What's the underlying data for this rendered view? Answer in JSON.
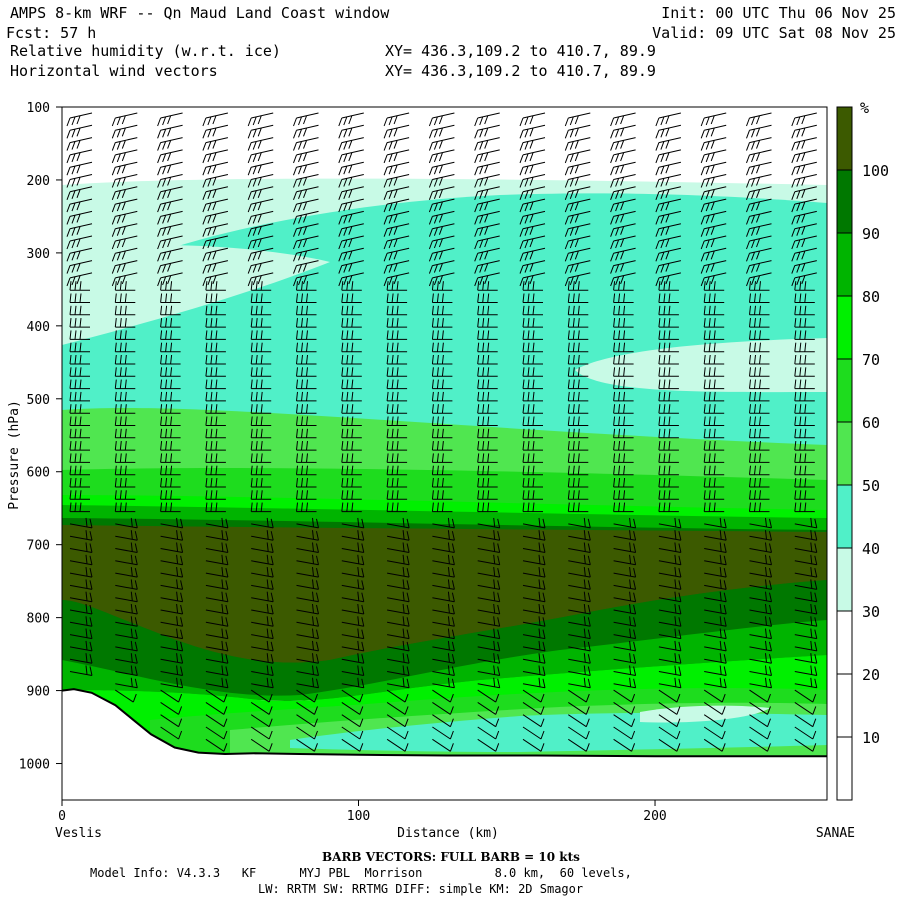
{
  "header": {
    "title_left": "AMPS 8-km WRF -- Qn Maud Land Coast window",
    "fcst": "Fcst:    57 h",
    "field1": "Relative humidity (w.r.t. ice)",
    "field2": "Horizontal wind vectors",
    "init": "Init: 00 UTC Thu 06 Nov 25",
    "valid": "Valid: 09 UTC Sat 08 Nov 25",
    "xy1": "XY= 436.3,109.2 to 410.7, 89.9",
    "xy2": "XY= 436.3,109.2 to 410.7, 89.9"
  },
  "colors": {
    "band_30_40": "#c8fae6",
    "band_40_50": "#50f0c8",
    "band_50_60": "#50e650",
    "band_60_70": "#1edc1e",
    "band_70_80": "#00f000",
    "band_80_90": "#00b400",
    "band_90_100": "#007800",
    "band_100": "#3c5a00",
    "terrain_line": "#000000"
  },
  "chart_data": {
    "type": "heatmap",
    "xlabel": "Distance (km)",
    "ylabel": "Pressure (hPa)",
    "xlim": [
      0,
      258
    ],
    "ylim": [
      1050,
      100
    ],
    "x_ticks": [
      "0",
      "100",
      "200"
    ],
    "x_tick_values": [
      0,
      100,
      200
    ],
    "y_ticks": [
      "100",
      "200",
      "300",
      "400",
      "500",
      "600",
      "700",
      "800",
      "900",
      "1000"
    ],
    "y_tick_values": [
      100,
      200,
      300,
      400,
      500,
      600,
      700,
      800,
      900,
      1000
    ],
    "left_end_label": "Veslis",
    "right_end_label": "SANAE",
    "colorbar": {
      "unit": "%",
      "levels": [
        "10",
        "20",
        "30",
        "40",
        "50",
        "60",
        "70",
        "80",
        "90",
        "100"
      ],
      "level_values": [
        10,
        20,
        30,
        40,
        50,
        60,
        70,
        80,
        90,
        100
      ]
    },
    "terrain_surface": {
      "x": [
        0,
        4,
        10,
        18,
        24,
        30,
        38,
        46,
        55,
        65,
        80,
        100,
        130,
        160,
        200,
        240,
        258
      ],
      "p": [
        900,
        898,
        903,
        920,
        940,
        960,
        978,
        985,
        987,
        986,
        987,
        988,
        989,
        989,
        990,
        990,
        990
      ]
    }
  },
  "footer": {
    "barb_note": "BARB VECTORS:  FULL BARB = 10 kts",
    "model_info_line": "Model Info: V4.3.3   KF      MYJ PBL  Morrison          8.0 km,  60 levels,",
    "physics_line": "LW: RRTM SW: RRTMG   DIFF: simple KM: 2D Smagor"
  }
}
